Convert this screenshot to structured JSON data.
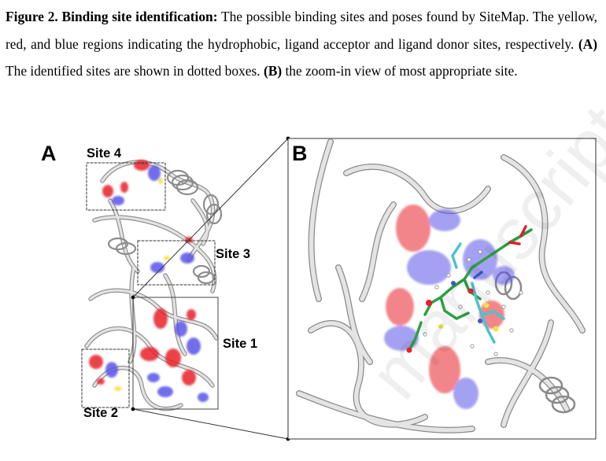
{
  "caption": {
    "figure_label": "Figure 2.",
    "title": "Binding site identification:",
    "text1": " The possible binding sites and poses found by SiteMap. The yellow, red, and blue regions indicating the hydrophobic, ligand acceptor and ligand donor sites, respectively. ",
    "panel_a": "(A)",
    "text2": " The identified sites are shown in dotted boxes. ",
    "panel_b": "(B)",
    "text3": " the zoom-in view of most appropriate site."
  },
  "panels": {
    "a_letter": "A",
    "b_letter": "B"
  },
  "sites": {
    "site4": "Site 4",
    "site3": "Site 3",
    "site1": "Site 1",
    "site2": "Site 2"
  },
  "colors": {
    "hydrophobic": "#f2e23a",
    "acceptor": "#e8202a",
    "donor": "#5a55e8",
    "ribbon": "#e3e3e3"
  },
  "watermark": "manuscript"
}
